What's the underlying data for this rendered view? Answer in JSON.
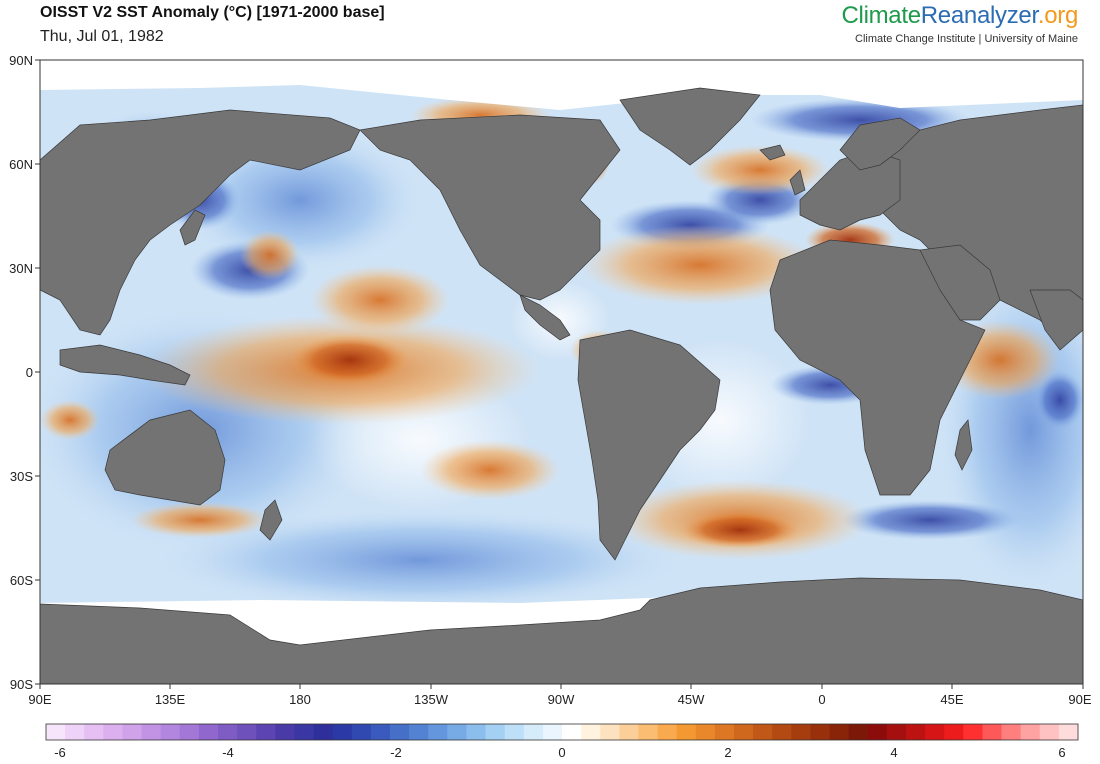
{
  "header": {
    "title": "OISST V2 SST Anomaly (°C) [1971-2000 base]",
    "date": "Thu, Jul 01, 1982"
  },
  "brand": {
    "part1": "Climate",
    "part2": "Reanalyzer",
    "part3": ".org",
    "subtitle": "Climate Change Institute | University of Maine",
    "colors": {
      "green": "#1e9a4b",
      "blue": "#2b6cb3",
      "orange": "#f39a1e"
    }
  },
  "map": {
    "y_axis_labels": [
      "90N",
      "60N",
      "30N",
      "0",
      "30S",
      "60S",
      "90S"
    ],
    "x_axis_labels": [
      "90E",
      "135E",
      "180",
      "135W",
      "90W",
      "45W",
      "0",
      "45E",
      "90E"
    ],
    "land_color": "#737373",
    "ice_color": "#ffffff"
  },
  "colorbar": {
    "labels": [
      "-6",
      "-4",
      "-2",
      "0",
      "2",
      "4",
      "6"
    ],
    "min": -6,
    "max": 6,
    "colors": [
      "#f7e6fb",
      "#efd2f7",
      "#e6bff3",
      "#dcb0ef",
      "#cfa2ea",
      "#c293e4",
      "#b285de",
      "#a277d6",
      "#9068cd",
      "#7f5bc4",
      "#6f51bc",
      "#5c45b2",
      "#4a3aa8",
      "#3a36a3",
      "#2e2f9b",
      "#2a39a5",
      "#3049b0",
      "#3a5bbd",
      "#466fc8",
      "#5382d3",
      "#6396dd",
      "#77abe6",
      "#8cbeed",
      "#a4d0f3",
      "#bddff7",
      "#d6ecfb",
      "#eaf5fd",
      "#ffffff",
      "#fff3e0",
      "#fde2c0",
      "#fccf98",
      "#fbbd72",
      "#f9aa4f",
      "#f49932",
      "#e9882a",
      "#dd7723",
      "#cf671d",
      "#c25818",
      "#b44a13",
      "#a63d0f",
      "#98300c",
      "#8a2409",
      "#7c1807",
      "#8c0c0c",
      "#a50f0f",
      "#bd1212",
      "#d61616",
      "#ec1c1c",
      "#ff3030",
      "#ff5858",
      "#ff7e7e",
      "#ffa2a2",
      "#ffc2c2",
      "#ffdcdc"
    ]
  }
}
